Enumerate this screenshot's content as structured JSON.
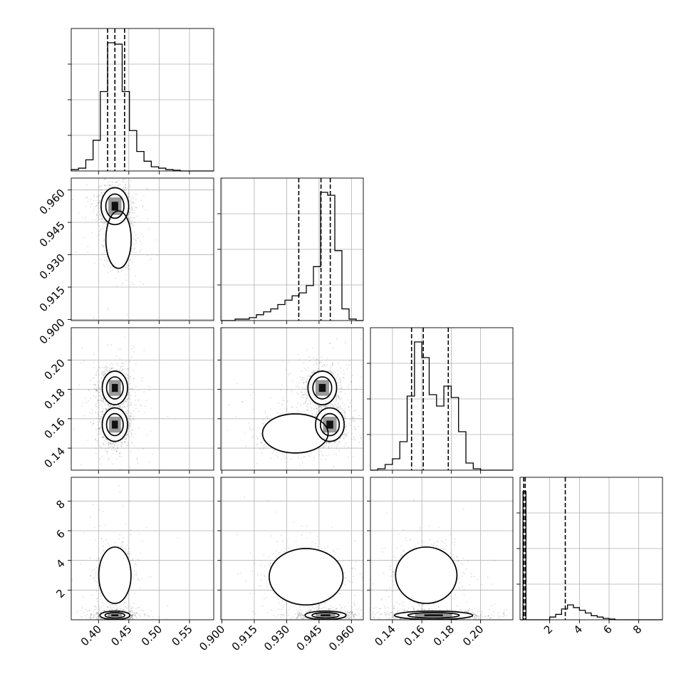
{
  "chart_data": {
    "type": "corner",
    "parameters": [
      {
        "id": "p0",
        "range": [
          0.355,
          0.59
        ],
        "ticks": [
          "0.40",
          "0.45",
          "0.50",
          "0.55"
        ],
        "tick_values": [
          0.4,
          0.45,
          0.5,
          0.55
        ]
      },
      {
        "id": "p1",
        "range": [
          0.8995,
          0.9655
        ],
        "ticks": [
          "0.900",
          "0.915",
          "0.930",
          "0.945",
          "0.960"
        ],
        "tick_values": [
          0.9,
          0.915,
          0.93,
          0.945,
          0.96
        ]
      },
      {
        "id": "p2",
        "range": [
          0.125,
          0.222
        ],
        "ticks": [
          "0.14",
          "0.16",
          "0.18",
          "0.20"
        ],
        "tick_values": [
          0.14,
          0.16,
          0.18,
          0.2
        ]
      },
      {
        "id": "p3",
        "range": [
          0.0,
          9.6
        ],
        "ticks": [
          "2",
          "4",
          "6",
          "8"
        ],
        "tick_values": [
          2,
          4,
          6,
          8
        ]
      }
    ],
    "histograms": [
      {
        "param": 0,
        "bins": [
          0.355,
          0.367,
          0.379,
          0.391,
          0.403,
          0.415,
          0.427,
          0.439,
          0.451,
          0.463,
          0.475,
          0.487,
          0.499,
          0.511,
          0.523,
          0.535,
          0.547,
          0.559,
          0.571,
          0.59
        ],
        "counts": [
          0.01,
          0.02,
          0.08,
          0.22,
          0.57,
          0.92,
          0.91,
          0.57,
          0.29,
          0.14,
          0.07,
          0.03,
          0.02,
          0.01,
          0.005,
          0.0,
          0.0,
          0.0,
          0.0
        ],
        "quantiles": [
          0.415,
          0.427,
          0.443
        ]
      },
      {
        "param": 1,
        "bins": [
          0.8995,
          0.9028,
          0.9061,
          0.9094,
          0.9127,
          0.916,
          0.9193,
          0.9226,
          0.9259,
          0.9292,
          0.9325,
          0.9358,
          0.9391,
          0.9424,
          0.9457,
          0.949,
          0.9523,
          0.9556,
          0.9589,
          0.9622,
          0.9655
        ],
        "counts": [
          0.0,
          0.0,
          0.01,
          0.01,
          0.02,
          0.04,
          0.06,
          0.08,
          0.11,
          0.14,
          0.17,
          0.19,
          0.24,
          0.37,
          0.88,
          0.86,
          0.48,
          0.08,
          0.01,
          0.0
        ],
        "quantiles": [
          0.9356,
          0.9459,
          0.9502
        ]
      },
      {
        "param": 2,
        "bins": [
          0.125,
          0.13,
          0.135,
          0.14,
          0.145,
          0.15,
          0.155,
          0.16,
          0.165,
          0.17,
          0.175,
          0.18,
          0.185,
          0.19,
          0.195,
          0.2,
          0.205,
          0.21,
          0.215,
          0.222
        ],
        "counts": [
          0.0,
          0.01,
          0.04,
          0.08,
          0.2,
          0.52,
          0.9,
          0.79,
          0.53,
          0.45,
          0.59,
          0.51,
          0.27,
          0.05,
          0.01,
          0.0,
          0.0,
          0.0,
          0.0
        ],
        "quantiles": [
          0.153,
          0.161,
          0.178
        ]
      },
      {
        "param": 3,
        "bins": [
          0.0,
          0.2,
          0.4,
          0.8,
          1.2,
          1.6,
          2.0,
          2.4,
          2.8,
          3.2,
          3.6,
          4.0,
          4.4,
          4.8,
          5.2,
          5.6,
          6.0,
          6.4,
          7.0,
          8.0,
          9.6
        ],
        "counts": [
          0.0,
          0.95,
          0.0,
          0.0,
          0.0,
          0.0,
          0.02,
          0.04,
          0.08,
          0.11,
          0.09,
          0.07,
          0.05,
          0.03,
          0.02,
          0.01,
          0.005,
          0.0,
          0.0,
          0.0
        ],
        "quantiles": [
          0.25,
          0.35,
          3.05
        ]
      }
    ],
    "pairs": [
      {
        "x": 0,
        "y": 1,
        "modes": [
          {
            "center": [
              0.427,
              0.9525
            ],
            "spread": [
              0.012,
              0.0045
            ],
            "weight": 0.9,
            "hot": true
          },
          {
            "center": [
              0.433,
              0.937
            ],
            "spread": [
              0.011,
              0.007
            ],
            "weight": 0.45,
            "hot": false
          }
        ]
      },
      {
        "x": 0,
        "y": 2,
        "modes": [
          {
            "center": [
              0.427,
              0.156
            ],
            "spread": [
              0.011,
              0.006
            ],
            "weight": 1.0,
            "hot": true
          },
          {
            "center": [
              0.427,
              0.181
            ],
            "spread": [
              0.011,
              0.006
            ],
            "weight": 0.9,
            "hot": true
          }
        ]
      },
      {
        "x": 1,
        "y": 2,
        "modes": [
          {
            "center": [
              0.9465,
              0.181
            ],
            "spread": [
              0.0035,
              0.006
            ],
            "weight": 0.9,
            "hot": true
          },
          {
            "center": [
              0.95,
              0.156
            ],
            "spread": [
              0.0035,
              0.006
            ],
            "weight": 0.9,
            "hot": true
          },
          {
            "center": [
              0.934,
              0.15
            ],
            "spread": [
              0.008,
              0.007
            ],
            "weight": 0.45,
            "hot": false
          }
        ]
      },
      {
        "x": 0,
        "y": 3,
        "modes": [
          {
            "center": [
              0.427,
              3.0
            ],
            "spread": [
              0.014,
              1.0
            ],
            "weight": 0.5,
            "hot": false
          },
          {
            "center": [
              0.427,
              0.3
            ],
            "spread": [
              0.013,
              0.15
            ],
            "weight": 1.0,
            "hot": true
          }
        ]
      },
      {
        "x": 1,
        "y": 3,
        "modes": [
          {
            "center": [
              0.939,
              2.9
            ],
            "spread": [
              0.009,
              1.0
            ],
            "weight": 0.5,
            "hot": false
          },
          {
            "center": [
              0.948,
              0.3
            ],
            "spread": [
              0.005,
              0.15
            ],
            "weight": 1.0,
            "hot": true
          }
        ]
      },
      {
        "x": 2,
        "y": 3,
        "modes": [
          {
            "center": [
              0.163,
              3.0
            ],
            "spread": [
              0.011,
              1.0
            ],
            "weight": 0.5,
            "hot": false
          },
          {
            "center": [
              0.168,
              0.3
            ],
            "spread": [
              0.014,
              0.15
            ],
            "weight": 1.0,
            "hot": true
          }
        ]
      }
    ],
    "grid": true,
    "title": "",
    "xlabel": "",
    "ylabel": ""
  }
}
